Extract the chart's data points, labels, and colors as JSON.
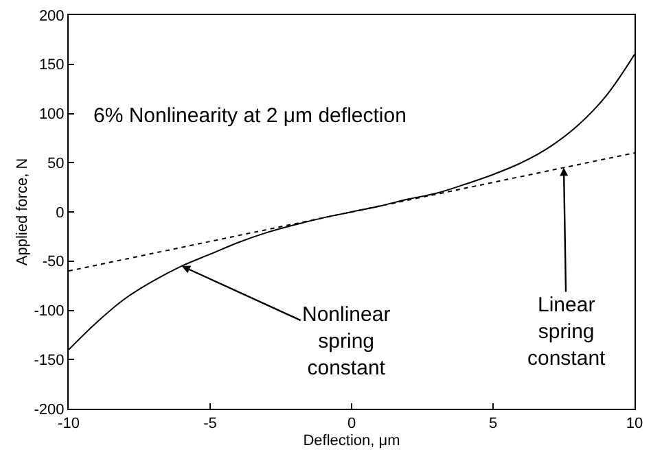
{
  "chart_data": {
    "type": "line",
    "xlabel": "Deflection, μm",
    "ylabel": "Applied force, N",
    "xlim": [
      -10,
      10
    ],
    "xticks": [
      -10,
      -5,
      0,
      5,
      10
    ],
    "ylim": [
      -200,
      200
    ],
    "yticks": [
      -200,
      -150,
      -100,
      -50,
      0,
      50,
      100,
      150,
      200
    ],
    "grid": false,
    "legend": false,
    "marker": "none",
    "series": [
      {
        "color": "#000000",
        "line_style": "solid",
        "x": [
          -10,
          -9,
          -8,
          -7,
          -6,
          -5,
          -4,
          -3,
          -2,
          -1,
          0,
          1,
          2,
          3,
          4,
          5,
          6,
          7,
          8,
          9,
          10
        ],
        "values": [
          -140,
          -112,
          -88,
          -70,
          -55,
          -43,
          -31,
          -21,
          -13,
          -6,
          0,
          6,
          13,
          19,
          28,
          38,
          50,
          66,
          88,
          118,
          160
        ]
      },
      {
        "color": "#000000",
        "line_style": "dotted",
        "x": [
          -10,
          10
        ],
        "values": [
          -60,
          60
        ]
      }
    ],
    "annotations": [
      "6% Nonlinearity at 2 μm deflection",
      {
        "text": "Nonlinear spring constant",
        "x": -6,
        "y": -55
      },
      {
        "text": "Linear spring constant",
        "x": 7.5,
        "y": 45
      }
    ]
  }
}
